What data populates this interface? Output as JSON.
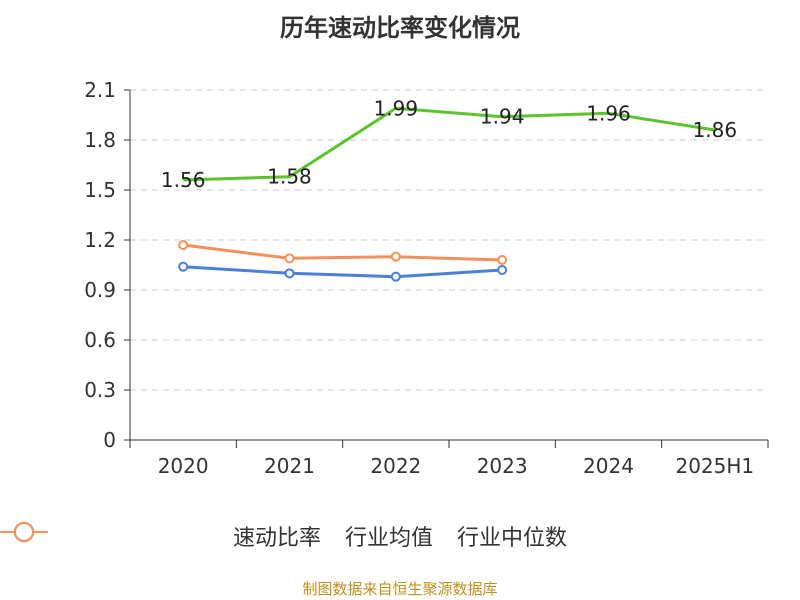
{
  "chart_data": {
    "type": "line",
    "title": "历年速动比率变化情况",
    "categories": [
      "2020",
      "2021",
      "2022",
      "2023",
      "2024",
      "2025H1"
    ],
    "yticks": [
      "0",
      "0.3",
      "0.6",
      "0.9",
      "1.2",
      "1.5",
      "1.8",
      "2.1"
    ],
    "ylim": [
      0,
      2.1
    ],
    "grid": true,
    "legend_position": "bottom",
    "series": [
      {
        "name": "速动比率",
        "color": "#5cc22e",
        "values": [
          1.56,
          1.58,
          1.99,
          1.94,
          1.96,
          1.86
        ],
        "labels": [
          "1.56",
          "1.58",
          "1.99",
          "1.94",
          "1.96",
          "1.86"
        ],
        "show_markers": false
      },
      {
        "name": "行业均值",
        "color": "#4a7fdb",
        "values": [
          1.04,
          1.0,
          0.98,
          1.02,
          null,
          null
        ],
        "show_markers": true
      },
      {
        "name": "行业中位数",
        "color": "#f4905c",
        "values": [
          1.17,
          1.09,
          1.1,
          1.08,
          null,
          null
        ],
        "show_markers": true
      }
    ]
  },
  "source": "制图数据来自恒生聚源数据库"
}
